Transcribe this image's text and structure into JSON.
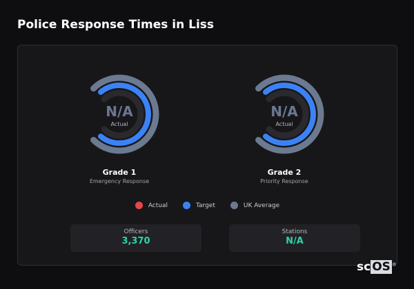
{
  "title": "Police Response Times in Liss",
  "colors": {
    "actual": "#e84545",
    "target": "#3b82f6",
    "uk_average": "#6b7a90",
    "highlight": "#2dd4a8"
  },
  "gauges": [
    {
      "value": "N/A",
      "value_label": "Actual",
      "name": "Grade 1",
      "subtitle": "Emergency Response"
    },
    {
      "value": "N/A",
      "value_label": "Actual",
      "name": "Grade 2",
      "subtitle": "Priority Response"
    }
  ],
  "legend": [
    {
      "label": "Actual"
    },
    {
      "label": "Target"
    },
    {
      "label": "UK Average"
    }
  ],
  "stats": [
    {
      "label": "Officers",
      "value": "3,370"
    },
    {
      "label": "Stations",
      "value": "N/A"
    }
  ],
  "logo": {
    "text_a": "sc",
    "text_b": "OS",
    "mark": "®"
  }
}
